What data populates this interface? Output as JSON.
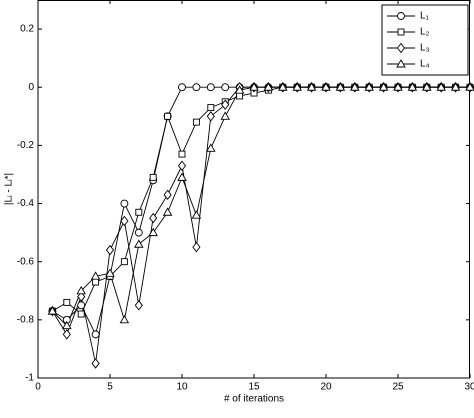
{
  "chart_data": {
    "type": "line",
    "xlabel": "# of iterations",
    "ylabel": "|Lᵢ - Lᵢ*|",
    "x": [
      1,
      2,
      3,
      4,
      5,
      6,
      7,
      8,
      9,
      10,
      11,
      12,
      13,
      14,
      15,
      16,
      17,
      18,
      19,
      20,
      21,
      22,
      23,
      24,
      25,
      26,
      27,
      28,
      29,
      30
    ],
    "series": [
      {
        "name": "L₁",
        "color": "#000000",
        "marker": "circle",
        "values": [
          -0.77,
          -0.8,
          -0.75,
          -0.85,
          -0.65,
          -0.4,
          -0.5,
          -0.32,
          -0.1,
          0,
          0,
          0,
          0,
          0,
          0,
          0,
          0,
          0,
          0,
          0,
          0,
          0,
          0,
          0,
          0,
          0,
          0,
          0,
          0,
          0
        ]
      },
      {
        "name": "L₂",
        "color": "#000000",
        "marker": "square",
        "values": [
          -0.77,
          -0.74,
          -0.78,
          -0.67,
          -0.65,
          -0.6,
          -0.43,
          -0.31,
          -0.1,
          -0.23,
          -0.12,
          -0.07,
          -0.05,
          -0.03,
          -0.02,
          -0.01,
          0,
          0,
          0,
          0,
          0,
          0,
          0,
          0,
          0,
          0,
          0,
          0,
          0,
          0
        ]
      },
      {
        "name": "L₃",
        "color": "#000000",
        "marker": "diamond",
        "values": [
          -0.77,
          -0.85,
          -0.72,
          -0.95,
          -0.56,
          -0.46,
          -0.75,
          -0.45,
          -0.37,
          -0.27,
          -0.55,
          -0.1,
          -0.06,
          0,
          0,
          0,
          0,
          0,
          0,
          0,
          0,
          0,
          0,
          0,
          0,
          0,
          0,
          0,
          0,
          0
        ]
      },
      {
        "name": "L₄",
        "color": "#000000",
        "marker": "triangle",
        "values": [
          -0.77,
          -0.82,
          -0.7,
          -0.65,
          -0.64,
          -0.8,
          -0.54,
          -0.5,
          -0.43,
          -0.31,
          -0.44,
          -0.21,
          -0.1,
          -0.01,
          0,
          0,
          0,
          0,
          0,
          0,
          0,
          0,
          0,
          0,
          0,
          0,
          0,
          0,
          0,
          0
        ]
      }
    ],
    "xlim": [
      0,
      30
    ],
    "xticks": [
      0,
      5,
      10,
      15,
      20,
      25,
      30
    ],
    "ylim": [
      -1,
      0.3
    ],
    "yticks": [
      -1,
      -0.8,
      -0.6,
      -0.4,
      -0.2,
      0,
      0.2
    ],
    "grid": false,
    "legend": "upper right"
  }
}
